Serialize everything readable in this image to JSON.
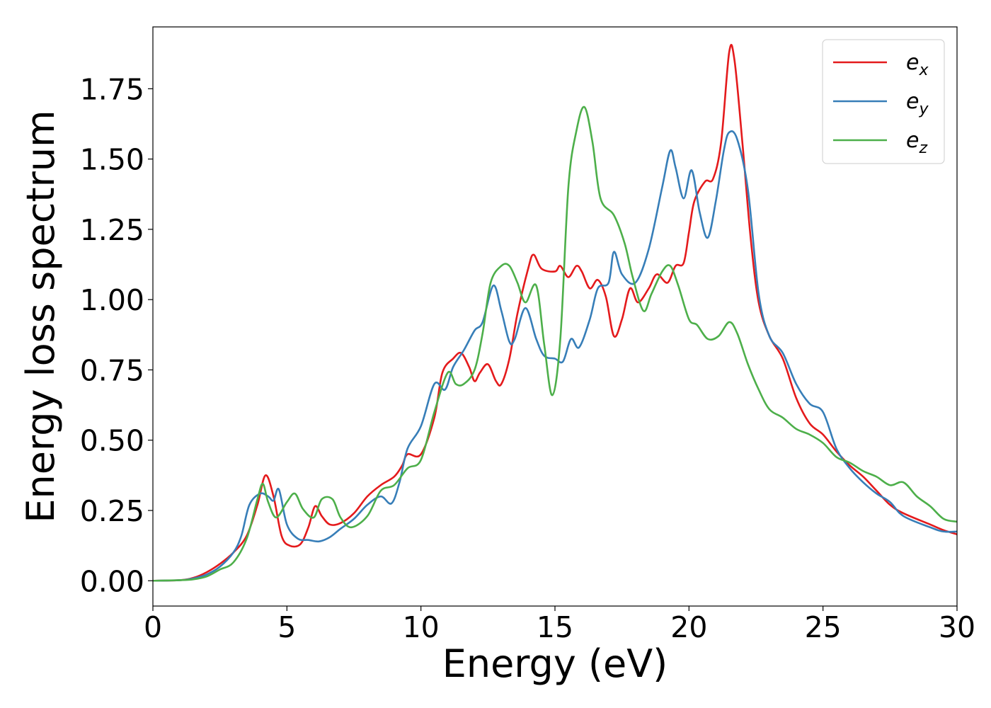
{
  "chart_data": {
    "type": "line",
    "title": "",
    "xlabel": "Energy (eV)",
    "ylabel": "Energy loss spectrum",
    "xlim": [
      0,
      30
    ],
    "ylim": [
      -0.09,
      1.97
    ],
    "xticks": [
      0,
      5,
      10,
      15,
      20,
      25,
      30
    ],
    "xtick_labels": [
      "0",
      "5",
      "10",
      "15",
      "20",
      "25",
      "30"
    ],
    "yticks": [
      0.0,
      0.25,
      0.5,
      0.75,
      1.0,
      1.25,
      1.5,
      1.75
    ],
    "ytick_labels": [
      "0.00",
      "0.25",
      "0.50",
      "0.75",
      "1.00",
      "1.25",
      "1.50",
      "1.75"
    ],
    "grid": false,
    "legend_position": "top-right",
    "series": [
      {
        "name": "e",
        "subscript": "x",
        "color": "#e41a1c",
        "points": [
          [
            0,
            0
          ],
          [
            1.0,
            0.002
          ],
          [
            1.5,
            0.01
          ],
          [
            2.0,
            0.03
          ],
          [
            2.5,
            0.06
          ],
          [
            3.0,
            0.1
          ],
          [
            3.5,
            0.16
          ],
          [
            3.9,
            0.27
          ],
          [
            4.2,
            0.375
          ],
          [
            4.5,
            0.3
          ],
          [
            4.8,
            0.16
          ],
          [
            5.1,
            0.125
          ],
          [
            5.5,
            0.13
          ],
          [
            5.8,
            0.19
          ],
          [
            6.05,
            0.265
          ],
          [
            6.3,
            0.23
          ],
          [
            6.6,
            0.2
          ],
          [
            7.0,
            0.205
          ],
          [
            7.5,
            0.24
          ],
          [
            8.0,
            0.3
          ],
          [
            8.5,
            0.34
          ],
          [
            9.0,
            0.37
          ],
          [
            9.3,
            0.41
          ],
          [
            9.5,
            0.45
          ],
          [
            10.0,
            0.45
          ],
          [
            10.5,
            0.58
          ],
          [
            10.8,
            0.74
          ],
          [
            11.2,
            0.79
          ],
          [
            11.5,
            0.81
          ],
          [
            11.8,
            0.76
          ],
          [
            12.0,
            0.71
          ],
          [
            12.2,
            0.74
          ],
          [
            12.5,
            0.77
          ],
          [
            12.8,
            0.71
          ],
          [
            13.0,
            0.7
          ],
          [
            13.3,
            0.79
          ],
          [
            13.6,
            0.95
          ],
          [
            14.0,
            1.11
          ],
          [
            14.2,
            1.16
          ],
          [
            14.5,
            1.11
          ],
          [
            15.0,
            1.1
          ],
          [
            15.2,
            1.12
          ],
          [
            15.5,
            1.08
          ],
          [
            15.8,
            1.12
          ],
          [
            16.0,
            1.1
          ],
          [
            16.3,
            1.04
          ],
          [
            16.6,
            1.07
          ],
          [
            16.9,
            1.01
          ],
          [
            17.2,
            0.87
          ],
          [
            17.5,
            0.93
          ],
          [
            17.8,
            1.04
          ],
          [
            18.1,
            0.99
          ],
          [
            18.5,
            1.04
          ],
          [
            18.8,
            1.09
          ],
          [
            19.2,
            1.06
          ],
          [
            19.5,
            1.12
          ],
          [
            19.8,
            1.13
          ],
          [
            20.0,
            1.24
          ],
          [
            20.2,
            1.35
          ],
          [
            20.6,
            1.42
          ],
          [
            20.9,
            1.43
          ],
          [
            21.2,
            1.56
          ],
          [
            21.5,
            1.88
          ],
          [
            21.7,
            1.85
          ],
          [
            22.0,
            1.55
          ],
          [
            22.3,
            1.22
          ],
          [
            22.6,
            0.99
          ],
          [
            23.0,
            0.87
          ],
          [
            23.5,
            0.79
          ],
          [
            24.0,
            0.65
          ],
          [
            24.5,
            0.56
          ],
          [
            25.0,
            0.52
          ],
          [
            25.5,
            0.46
          ],
          [
            26.0,
            0.41
          ],
          [
            26.5,
            0.37
          ],
          [
            27.0,
            0.32
          ],
          [
            27.5,
            0.27
          ],
          [
            28.0,
            0.24
          ],
          [
            29.0,
            0.2
          ],
          [
            29.5,
            0.18
          ],
          [
            30.0,
            0.165
          ]
        ]
      },
      {
        "name": "e",
        "subscript": "y",
        "color": "#377eb8",
        "points": [
          [
            0,
            0
          ],
          [
            1.0,
            0.002
          ],
          [
            1.5,
            0.008
          ],
          [
            2.0,
            0.022
          ],
          [
            2.5,
            0.05
          ],
          [
            3.0,
            0.1
          ],
          [
            3.3,
            0.16
          ],
          [
            3.6,
            0.27
          ],
          [
            4.0,
            0.31
          ],
          [
            4.3,
            0.3
          ],
          [
            4.5,
            0.285
          ],
          [
            4.7,
            0.325
          ],
          [
            5.0,
            0.2
          ],
          [
            5.4,
            0.15
          ],
          [
            5.8,
            0.145
          ],
          [
            6.2,
            0.14
          ],
          [
            6.6,
            0.155
          ],
          [
            7.0,
            0.185
          ],
          [
            7.5,
            0.22
          ],
          [
            8.0,
            0.27
          ],
          [
            8.5,
            0.3
          ],
          [
            8.9,
            0.275
          ],
          [
            9.2,
            0.35
          ],
          [
            9.5,
            0.47
          ],
          [
            10.0,
            0.55
          ],
          [
            10.5,
            0.7
          ],
          [
            10.9,
            0.68
          ],
          [
            11.2,
            0.76
          ],
          [
            11.6,
            0.82
          ],
          [
            12.0,
            0.89
          ],
          [
            12.3,
            0.92
          ],
          [
            12.7,
            1.05
          ],
          [
            13.0,
            0.96
          ],
          [
            13.3,
            0.85
          ],
          [
            13.5,
            0.86
          ],
          [
            13.9,
            0.97
          ],
          [
            14.3,
            0.86
          ],
          [
            14.6,
            0.8
          ],
          [
            15.0,
            0.79
          ],
          [
            15.3,
            0.78
          ],
          [
            15.6,
            0.86
          ],
          [
            15.9,
            0.83
          ],
          [
            16.3,
            0.93
          ],
          [
            16.6,
            1.04
          ],
          [
            17.0,
            1.06
          ],
          [
            17.2,
            1.17
          ],
          [
            17.5,
            1.09
          ],
          [
            18.0,
            1.06
          ],
          [
            18.5,
            1.18
          ],
          [
            19.0,
            1.4
          ],
          [
            19.3,
            1.53
          ],
          [
            19.5,
            1.47
          ],
          [
            19.8,
            1.36
          ],
          [
            20.1,
            1.46
          ],
          [
            20.4,
            1.31
          ],
          [
            20.7,
            1.22
          ],
          [
            21.0,
            1.35
          ],
          [
            21.3,
            1.53
          ],
          [
            21.5,
            1.595
          ],
          [
            21.8,
            1.57
          ],
          [
            22.2,
            1.39
          ],
          [
            22.6,
            1.02
          ],
          [
            23.0,
            0.87
          ],
          [
            23.5,
            0.81
          ],
          [
            24.0,
            0.7
          ],
          [
            24.5,
            0.63
          ],
          [
            25.0,
            0.6
          ],
          [
            25.5,
            0.47
          ],
          [
            26.0,
            0.4
          ],
          [
            26.5,
            0.35
          ],
          [
            27.0,
            0.31
          ],
          [
            27.5,
            0.28
          ],
          [
            28.0,
            0.23
          ],
          [
            29.0,
            0.19
          ],
          [
            29.5,
            0.175
          ],
          [
            30.0,
            0.175
          ]
        ]
      },
      {
        "name": "e",
        "subscript": "z",
        "color": "#4daf4a",
        "points": [
          [
            0,
            0
          ],
          [
            1.0,
            0.002
          ],
          [
            1.5,
            0.005
          ],
          [
            2.0,
            0.015
          ],
          [
            2.5,
            0.04
          ],
          [
            3.0,
            0.065
          ],
          [
            3.5,
            0.15
          ],
          [
            3.9,
            0.29
          ],
          [
            4.1,
            0.345
          ],
          [
            4.3,
            0.28
          ],
          [
            4.6,
            0.225
          ],
          [
            5.0,
            0.28
          ],
          [
            5.3,
            0.31
          ],
          [
            5.6,
            0.255
          ],
          [
            6.0,
            0.225
          ],
          [
            6.3,
            0.29
          ],
          [
            6.7,
            0.29
          ],
          [
            7.0,
            0.225
          ],
          [
            7.4,
            0.19
          ],
          [
            8.0,
            0.23
          ],
          [
            8.5,
            0.32
          ],
          [
            9.0,
            0.34
          ],
          [
            9.5,
            0.4
          ],
          [
            10.0,
            0.43
          ],
          [
            10.5,
            0.6
          ],
          [
            11.0,
            0.74
          ],
          [
            11.3,
            0.7
          ],
          [
            11.6,
            0.7
          ],
          [
            12.0,
            0.75
          ],
          [
            12.3,
            0.88
          ],
          [
            12.6,
            1.06
          ],
          [
            13.0,
            1.12
          ],
          [
            13.3,
            1.12
          ],
          [
            13.6,
            1.06
          ],
          [
            13.9,
            0.99
          ],
          [
            14.3,
            1.05
          ],
          [
            14.6,
            0.84
          ],
          [
            14.9,
            0.66
          ],
          [
            15.2,
            0.86
          ],
          [
            15.5,
            1.4
          ],
          [
            15.8,
            1.6
          ],
          [
            16.1,
            1.685
          ],
          [
            16.4,
            1.56
          ],
          [
            16.7,
            1.36
          ],
          [
            17.2,
            1.3
          ],
          [
            17.6,
            1.2
          ],
          [
            17.9,
            1.08
          ],
          [
            18.3,
            0.96
          ],
          [
            18.6,
            1.02
          ],
          [
            19.0,
            1.1
          ],
          [
            19.3,
            1.12
          ],
          [
            19.6,
            1.05
          ],
          [
            20.0,
            0.93
          ],
          [
            20.3,
            0.91
          ],
          [
            20.7,
            0.86
          ],
          [
            21.1,
            0.87
          ],
          [
            21.5,
            0.92
          ],
          [
            21.8,
            0.88
          ],
          [
            22.2,
            0.77
          ],
          [
            22.6,
            0.68
          ],
          [
            23.0,
            0.61
          ],
          [
            23.5,
            0.58
          ],
          [
            24.0,
            0.54
          ],
          [
            24.5,
            0.52
          ],
          [
            25.0,
            0.49
          ],
          [
            25.5,
            0.44
          ],
          [
            26.0,
            0.42
          ],
          [
            26.5,
            0.39
          ],
          [
            27.0,
            0.37
          ],
          [
            27.5,
            0.34
          ],
          [
            28.0,
            0.35
          ],
          [
            28.5,
            0.3
          ],
          [
            29.0,
            0.265
          ],
          [
            29.5,
            0.22
          ],
          [
            30.0,
            0.21
          ]
        ]
      }
    ]
  }
}
